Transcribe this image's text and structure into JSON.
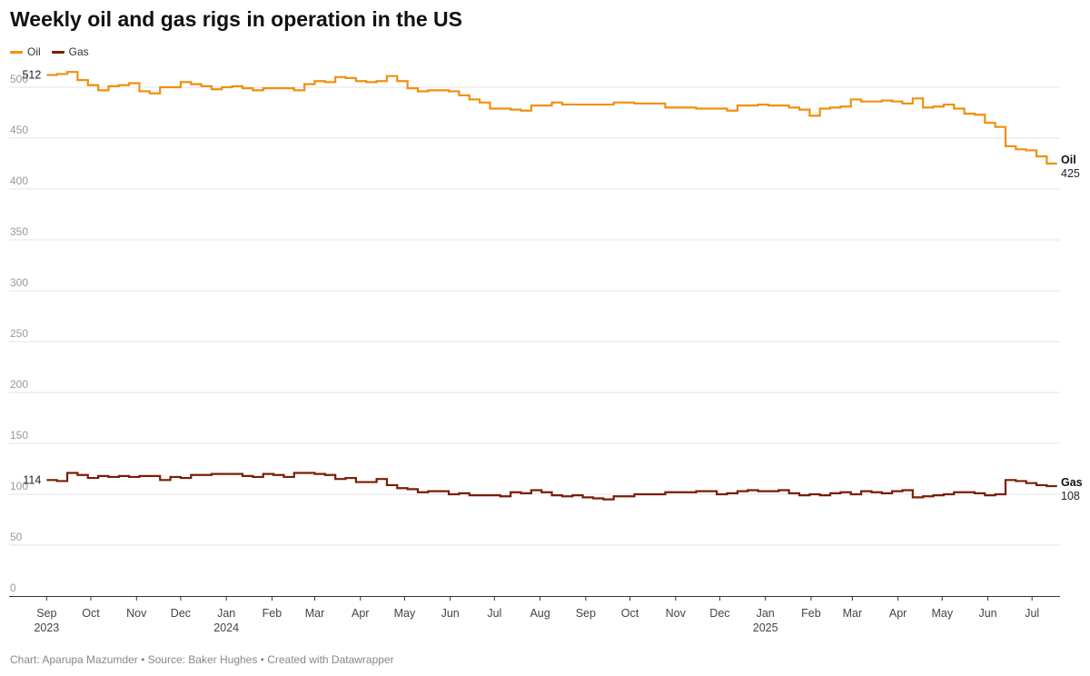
{
  "footer": "Chart: Aparupa Mazumder • Source: Baker Hughes • Created with Datawrapper",
  "colors": {
    "oil": "#f0900e",
    "gas": "#7a1d06",
    "grid": "#e3e3e3",
    "axis": "#333333"
  },
  "chart_data": {
    "type": "line",
    "line_style": "step",
    "title": "Weekly oil and gas rigs in operation in the US",
    "xlabel": "",
    "ylabel": "",
    "ylim": [
      0,
      500
    ],
    "y_ticks": [
      0,
      50,
      100,
      150,
      200,
      250,
      300,
      350,
      400,
      450,
      500
    ],
    "xlim": [
      "2023-08-25",
      "2025-07-20"
    ],
    "grid": true,
    "legend": "top-left",
    "x_ticks": [
      {
        "date": "2023-09-01",
        "label": "Sep",
        "year": "2023"
      },
      {
        "date": "2023-10-01",
        "label": "Oct",
        "year": ""
      },
      {
        "date": "2023-11-01",
        "label": "Nov",
        "year": ""
      },
      {
        "date": "2023-12-01",
        "label": "Dec",
        "year": ""
      },
      {
        "date": "2024-01-01",
        "label": "Jan",
        "year": "2024"
      },
      {
        "date": "2024-02-01",
        "label": "Feb",
        "year": ""
      },
      {
        "date": "2024-03-01",
        "label": "Mar",
        "year": ""
      },
      {
        "date": "2024-04-01",
        "label": "Apr",
        "year": ""
      },
      {
        "date": "2024-05-01",
        "label": "May",
        "year": ""
      },
      {
        "date": "2024-06-01",
        "label": "Jun",
        "year": ""
      },
      {
        "date": "2024-07-01",
        "label": "Jul",
        "year": ""
      },
      {
        "date": "2024-08-01",
        "label": "Aug",
        "year": ""
      },
      {
        "date": "2024-09-01",
        "label": "Sep",
        "year": ""
      },
      {
        "date": "2024-10-01",
        "label": "Oct",
        "year": ""
      },
      {
        "date": "2024-11-01",
        "label": "Nov",
        "year": ""
      },
      {
        "date": "2024-12-01",
        "label": "Dec",
        "year": ""
      },
      {
        "date": "2025-01-01",
        "label": "Jan",
        "year": "2025"
      },
      {
        "date": "2025-02-01",
        "label": "Feb",
        "year": ""
      },
      {
        "date": "2025-03-01",
        "label": "Mar",
        "year": ""
      },
      {
        "date": "2025-04-01",
        "label": "Apr",
        "year": ""
      },
      {
        "date": "2025-05-01",
        "label": "May",
        "year": ""
      },
      {
        "date": "2025-06-01",
        "label": "Jun",
        "year": ""
      },
      {
        "date": "2025-07-01",
        "label": "Jul",
        "year": ""
      }
    ],
    "series": [
      {
        "name": "Oil",
        "start_label": "512",
        "end_label": "425",
        "points": [
          [
            "2023-09-01",
            512
          ],
          [
            "2023-09-08",
            513
          ],
          [
            "2023-09-15",
            515
          ],
          [
            "2023-09-22",
            507
          ],
          [
            "2023-09-29",
            502
          ],
          [
            "2023-10-06",
            497
          ],
          [
            "2023-10-13",
            501
          ],
          [
            "2023-10-20",
            502
          ],
          [
            "2023-10-27",
            504
          ],
          [
            "2023-11-03",
            496
          ],
          [
            "2023-11-10",
            494
          ],
          [
            "2023-11-17",
            500
          ],
          [
            "2023-11-24",
            500
          ],
          [
            "2023-12-01",
            505
          ],
          [
            "2023-12-08",
            503
          ],
          [
            "2023-12-15",
            501
          ],
          [
            "2023-12-22",
            498
          ],
          [
            "2023-12-29",
            500
          ],
          [
            "2024-01-05",
            501
          ],
          [
            "2024-01-12",
            499
          ],
          [
            "2024-01-19",
            497
          ],
          [
            "2024-01-26",
            499
          ],
          [
            "2024-02-02",
            499
          ],
          [
            "2024-02-09",
            499
          ],
          [
            "2024-02-16",
            497
          ],
          [
            "2024-02-23",
            503
          ],
          [
            "2024-03-01",
            506
          ],
          [
            "2024-03-08",
            505
          ],
          [
            "2024-03-15",
            510
          ],
          [
            "2024-03-22",
            509
          ],
          [
            "2024-03-29",
            506
          ],
          [
            "2024-04-05",
            505
          ],
          [
            "2024-04-12",
            506
          ],
          [
            "2024-04-19",
            511
          ],
          [
            "2024-04-26",
            506
          ],
          [
            "2024-05-03",
            499
          ],
          [
            "2024-05-10",
            496
          ],
          [
            "2024-05-17",
            497
          ],
          [
            "2024-05-24",
            497
          ],
          [
            "2024-05-31",
            496
          ],
          [
            "2024-06-07",
            492
          ],
          [
            "2024-06-14",
            488
          ],
          [
            "2024-06-21",
            485
          ],
          [
            "2024-06-28",
            479
          ],
          [
            "2024-07-05",
            479
          ],
          [
            "2024-07-12",
            478
          ],
          [
            "2024-07-19",
            477
          ],
          [
            "2024-07-26",
            482
          ],
          [
            "2024-08-02",
            482
          ],
          [
            "2024-08-09",
            485
          ],
          [
            "2024-08-16",
            483
          ],
          [
            "2024-08-23",
            483
          ],
          [
            "2024-08-30",
            483
          ],
          [
            "2024-09-06",
            483
          ],
          [
            "2024-09-13",
            483
          ],
          [
            "2024-09-20",
            485
          ],
          [
            "2024-09-27",
            485
          ],
          [
            "2024-10-04",
            484
          ],
          [
            "2024-10-11",
            484
          ],
          [
            "2024-10-18",
            484
          ],
          [
            "2024-10-25",
            480
          ],
          [
            "2024-11-01",
            480
          ],
          [
            "2024-11-08",
            480
          ],
          [
            "2024-11-15",
            479
          ],
          [
            "2024-11-22",
            479
          ],
          [
            "2024-11-29",
            479
          ],
          [
            "2024-12-06",
            477
          ],
          [
            "2024-12-13",
            482
          ],
          [
            "2024-12-20",
            482
          ],
          [
            "2024-12-27",
            483
          ],
          [
            "2025-01-03",
            482
          ],
          [
            "2025-01-10",
            482
          ],
          [
            "2025-01-17",
            480
          ],
          [
            "2025-01-24",
            478
          ],
          [
            "2025-01-31",
            472
          ],
          [
            "2025-02-07",
            479
          ],
          [
            "2025-02-14",
            480
          ],
          [
            "2025-02-21",
            481
          ],
          [
            "2025-02-28",
            488
          ],
          [
            "2025-03-07",
            486
          ],
          [
            "2025-03-14",
            486
          ],
          [
            "2025-03-21",
            487
          ],
          [
            "2025-03-28",
            486
          ],
          [
            "2025-04-04",
            484
          ],
          [
            "2025-04-11",
            489
          ],
          [
            "2025-04-18",
            480
          ],
          [
            "2025-04-25",
            481
          ],
          [
            "2025-05-02",
            483
          ],
          [
            "2025-05-09",
            479
          ],
          [
            "2025-05-16",
            474
          ],
          [
            "2025-05-23",
            473
          ],
          [
            "2025-05-30",
            465
          ],
          [
            "2025-06-06",
            461
          ],
          [
            "2025-06-13",
            442
          ],
          [
            "2025-06-20",
            439
          ],
          [
            "2025-06-27",
            438
          ],
          [
            "2025-07-04",
            432
          ],
          [
            "2025-07-11",
            425
          ],
          [
            "2025-07-18",
            425
          ]
        ]
      },
      {
        "name": "Gas",
        "start_label": "114",
        "end_label": "108",
        "points": [
          [
            "2023-09-01",
            114
          ],
          [
            "2023-09-08",
            113
          ],
          [
            "2023-09-15",
            121
          ],
          [
            "2023-09-22",
            119
          ],
          [
            "2023-09-29",
            116
          ],
          [
            "2023-10-06",
            118
          ],
          [
            "2023-10-13",
            117
          ],
          [
            "2023-10-20",
            118
          ],
          [
            "2023-10-27",
            117
          ],
          [
            "2023-11-03",
            118
          ],
          [
            "2023-11-10",
            118
          ],
          [
            "2023-11-17",
            114
          ],
          [
            "2023-11-24",
            117
          ],
          [
            "2023-12-01",
            116
          ],
          [
            "2023-12-08",
            119
          ],
          [
            "2023-12-15",
            119
          ],
          [
            "2023-12-22",
            120
          ],
          [
            "2023-12-29",
            120
          ],
          [
            "2024-01-05",
            120
          ],
          [
            "2024-01-12",
            118
          ],
          [
            "2024-01-19",
            117
          ],
          [
            "2024-01-26",
            120
          ],
          [
            "2024-02-02",
            119
          ],
          [
            "2024-02-09",
            117
          ],
          [
            "2024-02-16",
            121
          ],
          [
            "2024-02-23",
            121
          ],
          [
            "2024-03-01",
            120
          ],
          [
            "2024-03-08",
            119
          ],
          [
            "2024-03-15",
            115
          ],
          [
            "2024-03-22",
            116
          ],
          [
            "2024-03-29",
            112
          ],
          [
            "2024-04-05",
            112
          ],
          [
            "2024-04-12",
            115
          ],
          [
            "2024-04-19",
            109
          ],
          [
            "2024-04-26",
            106
          ],
          [
            "2024-05-03",
            105
          ],
          [
            "2024-05-10",
            102
          ],
          [
            "2024-05-17",
            103
          ],
          [
            "2024-05-24",
            103
          ],
          [
            "2024-05-31",
            100
          ],
          [
            "2024-06-07",
            101
          ],
          [
            "2024-06-14",
            99
          ],
          [
            "2024-06-21",
            99
          ],
          [
            "2024-06-28",
            99
          ],
          [
            "2024-07-05",
            98
          ],
          [
            "2024-07-12",
            102
          ],
          [
            "2024-07-19",
            101
          ],
          [
            "2024-07-26",
            104
          ],
          [
            "2024-08-02",
            102
          ],
          [
            "2024-08-09",
            99
          ],
          [
            "2024-08-16",
            98
          ],
          [
            "2024-08-23",
            99
          ],
          [
            "2024-08-30",
            97
          ],
          [
            "2024-09-06",
            96
          ],
          [
            "2024-09-13",
            95
          ],
          [
            "2024-09-20",
            98
          ],
          [
            "2024-09-27",
            98
          ],
          [
            "2024-10-04",
            100
          ],
          [
            "2024-10-11",
            100
          ],
          [
            "2024-10-18",
            100
          ],
          [
            "2024-10-25",
            102
          ],
          [
            "2024-11-01",
            102
          ],
          [
            "2024-11-08",
            102
          ],
          [
            "2024-11-15",
            103
          ],
          [
            "2024-11-22",
            103
          ],
          [
            "2024-11-29",
            100
          ],
          [
            "2024-12-06",
            101
          ],
          [
            "2024-12-13",
            103
          ],
          [
            "2024-12-20",
            104
          ],
          [
            "2024-12-27",
            103
          ],
          [
            "2025-01-03",
            103
          ],
          [
            "2025-01-10",
            104
          ],
          [
            "2025-01-17",
            101
          ],
          [
            "2025-01-24",
            99
          ],
          [
            "2025-01-31",
            100
          ],
          [
            "2025-02-07",
            99
          ],
          [
            "2025-02-14",
            101
          ],
          [
            "2025-02-21",
            102
          ],
          [
            "2025-02-28",
            100
          ],
          [
            "2025-03-07",
            103
          ],
          [
            "2025-03-14",
            102
          ],
          [
            "2025-03-21",
            101
          ],
          [
            "2025-03-28",
            103
          ],
          [
            "2025-04-04",
            104
          ],
          [
            "2025-04-11",
            97
          ],
          [
            "2025-04-18",
            98
          ],
          [
            "2025-04-25",
            99
          ],
          [
            "2025-05-02",
            100
          ],
          [
            "2025-05-09",
            102
          ],
          [
            "2025-05-16",
            102
          ],
          [
            "2025-05-23",
            101
          ],
          [
            "2025-05-30",
            99
          ],
          [
            "2025-06-06",
            100
          ],
          [
            "2025-06-13",
            114
          ],
          [
            "2025-06-20",
            113
          ],
          [
            "2025-06-27",
            111
          ],
          [
            "2025-07-04",
            109
          ],
          [
            "2025-07-11",
            108
          ],
          [
            "2025-07-18",
            108
          ]
        ]
      }
    ]
  }
}
